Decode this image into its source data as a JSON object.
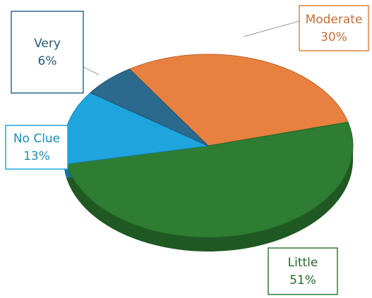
{
  "chart_data": {
    "type": "pie",
    "categories": [
      "Moderate",
      "Little",
      "No Clue",
      "Very"
    ],
    "values": [
      30,
      51,
      13,
      6
    ],
    "value_labels": [
      "30%",
      "51%",
      "13%",
      "6%"
    ],
    "colors": [
      "#e8803f",
      "#2e7d32",
      "#1fa5de",
      "#2b6a8d"
    ]
  }
}
